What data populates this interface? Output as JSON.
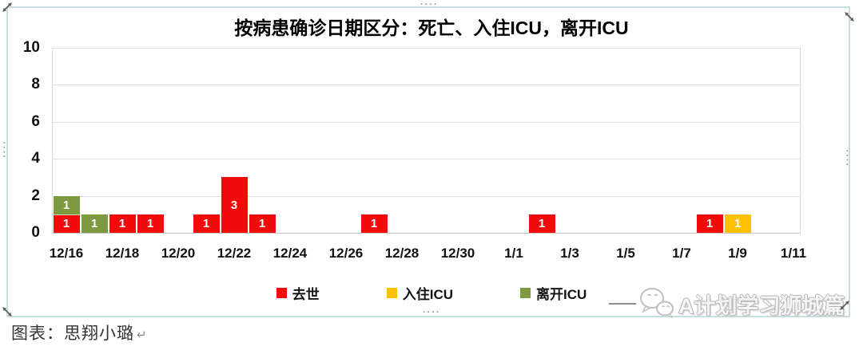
{
  "chart_data": {
    "type": "bar",
    "stacked": true,
    "title": "按病患确诊日期区分：死亡、入住ICU，离开ICU",
    "categories": [
      "12/16",
      "12/17",
      "12/18",
      "12/19",
      "12/20",
      "12/21",
      "12/22",
      "12/23",
      "12/24",
      "12/25",
      "12/26",
      "12/27",
      "12/28",
      "12/29",
      "12/30",
      "12/31",
      "1/1",
      "1/2",
      "1/3",
      "1/4",
      "1/5",
      "1/6",
      "1/7",
      "1/8",
      "1/9",
      "1/10",
      "1/11"
    ],
    "series": [
      {
        "name": "去世",
        "key": "deaths",
        "color": "#f30b0b",
        "values": [
          1,
          0,
          1,
          1,
          0,
          1,
          3,
          1,
          0,
          0,
          0,
          1,
          0,
          0,
          0,
          0,
          0,
          1,
          0,
          0,
          0,
          0,
          0,
          1,
          0,
          0,
          0
        ]
      },
      {
        "name": "入住ICU",
        "key": "icu-admission",
        "color": "#ffc000",
        "values": [
          0,
          0,
          0,
          0,
          0,
          0,
          0,
          0,
          0,
          0,
          0,
          0,
          0,
          0,
          0,
          0,
          0,
          0,
          0,
          0,
          0,
          0,
          0,
          0,
          1,
          0,
          0
        ]
      },
      {
        "name": "离开ICU",
        "key": "icu-leave",
        "color": "#7d9a40",
        "values": [
          1,
          1,
          0,
          0,
          0,
          0,
          0,
          0,
          0,
          0,
          0,
          0,
          0,
          0,
          0,
          0,
          0,
          0,
          0,
          0,
          0,
          0,
          0,
          0,
          0,
          0,
          0
        ]
      }
    ],
    "ylim": [
      0,
      10
    ],
    "yticks": [
      0,
      2,
      4,
      6,
      8,
      10
    ],
    "xtick_labels": [
      "12/16",
      "12/18",
      "12/20",
      "12/22",
      "12/24",
      "12/26",
      "12/28",
      "12/30",
      "1/1",
      "1/3",
      "1/5",
      "1/7",
      "1/9",
      "1/11"
    ],
    "grid": true,
    "legend_position": "bottom",
    "bar_value_labels_shown": true
  },
  "caption": {
    "label": "图表：思翔小璐",
    "return_mark": "↵"
  },
  "watermark": {
    "text": "A计划学习狮城篇",
    "icon": "wechat-icon"
  }
}
